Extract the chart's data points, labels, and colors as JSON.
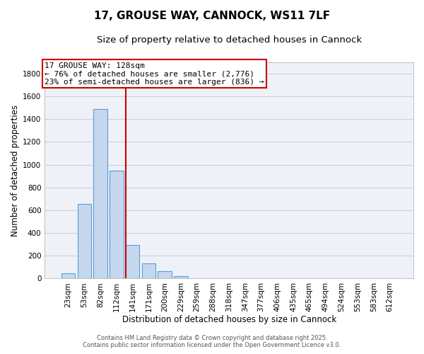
{
  "title": "17, GROUSE WAY, CANNOCK, WS11 7LF",
  "subtitle": "Size of property relative to detached houses in Cannock",
  "xlabel": "Distribution of detached houses by size in Cannock",
  "ylabel": "Number of detached properties",
  "categories": [
    "23sqm",
    "53sqm",
    "82sqm",
    "112sqm",
    "141sqm",
    "171sqm",
    "200sqm",
    "229sqm",
    "259sqm",
    "288sqm",
    "318sqm",
    "347sqm",
    "377sqm",
    "406sqm",
    "435sqm",
    "465sqm",
    "494sqm",
    "524sqm",
    "553sqm",
    "583sqm",
    "612sqm"
  ],
  "values": [
    45,
    655,
    1490,
    950,
    295,
    135,
    65,
    20,
    5,
    2,
    1,
    0,
    0,
    0,
    0,
    0,
    0,
    0,
    0,
    0,
    0
  ],
  "bar_color": "#c5d8f0",
  "bar_edge_color": "#5b9bd5",
  "vline_color": "#cc0000",
  "vline_pos": 3.57,
  "annotation_title": "17 GROUSE WAY: 128sqm",
  "annotation_line1": "← 76% of detached houses are smaller (2,776)",
  "annotation_line2": "23% of semi-detached houses are larger (836) →",
  "annotation_box_color": "#ffffff",
  "annotation_box_edge_color": "#cc0000",
  "ylim": [
    0,
    1900
  ],
  "yticks": [
    0,
    200,
    400,
    600,
    800,
    1000,
    1200,
    1400,
    1600,
    1800
  ],
  "footer1": "Contains HM Land Registry data © Crown copyright and database right 2025.",
  "footer2": "Contains public sector information licensed under the Open Government Licence v3.0.",
  "bg_color": "#ffffff",
  "plot_bg_color": "#eef2f8",
  "grid_color": "#c8cdd8",
  "title_fontsize": 11,
  "subtitle_fontsize": 9.5,
  "axis_label_fontsize": 8.5,
  "tick_fontsize": 7.5,
  "annotation_fontsize": 8,
  "footer_fontsize": 6
}
